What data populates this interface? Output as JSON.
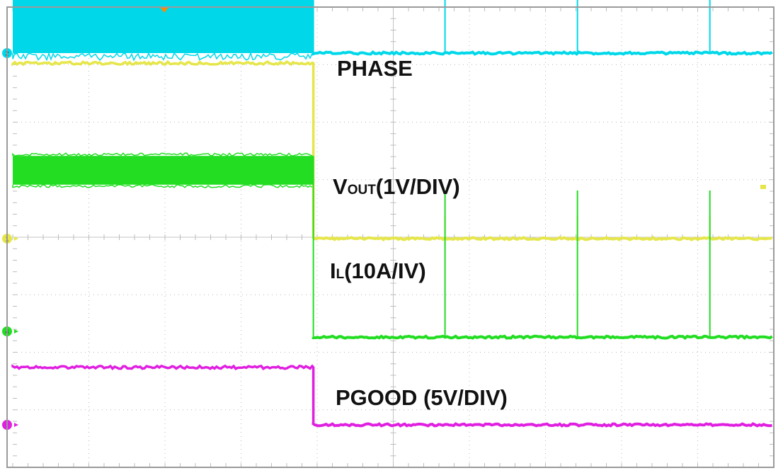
{
  "chart_data": {
    "type": "line",
    "title": "",
    "xlabel": "",
    "ylabel": "",
    "grid": true,
    "grid_divisions": {
      "x": 10,
      "y": 8
    },
    "x_range_div": [
      0,
      10
    ],
    "event_time_div": 3.95,
    "series": [
      {
        "name": "PHASE",
        "label_main": "PHASE",
        "label_sub": "",
        "label_suffix": "",
        "channel": "2",
        "color": "#00d8ea",
        "marker_level_div": 0.8,
        "before": {
          "type": "switching",
          "low_div": 0.8,
          "high_div": 2.25
        },
        "after_level_div": 0.8,
        "pulses": [
          {
            "t_div": 5.68,
            "peak_div": 2.25
          },
          {
            "t_div": 7.42,
            "peak_div": 2.25
          },
          {
            "t_div": 9.16,
            "peak_div": 2.25
          }
        ]
      },
      {
        "name": "VOUT(1V/DIV)",
        "label_main": "V",
        "label_sub": "OUT",
        "label_suffix": "(1V/DIV)",
        "channel": "1",
        "color": "#e6e64a",
        "marker_level_div": 0.0,
        "before": {
          "type": "level",
          "level_div": 3.05
        },
        "after_level_div": 0.0,
        "pulses": [
          {
            "t_div": 5.68,
            "peak_div": 0.4
          },
          {
            "t_div": 7.42,
            "peak_div": 0.4
          },
          {
            "t_div": 9.16,
            "peak_div": 0.4
          }
        ]
      },
      {
        "name": "IL(10A/IV)",
        "label_main": "I",
        "label_sub": "L",
        "label_suffix": "(10A/IV)",
        "channel": "4",
        "color": "#22dd22",
        "marker_level_div": 0.0,
        "before": {
          "type": "switching",
          "low_div": 2.55,
          "high_div": 3.05
        },
        "after_level_div": -0.1,
        "pulses": [
          {
            "t_div": 5.68,
            "peak_div": 2.45
          },
          {
            "t_div": 7.42,
            "peak_div": 2.45
          },
          {
            "t_div": 9.16,
            "peak_div": 2.45
          }
        ]
      },
      {
        "name": "PGOOD (5V/DIV)",
        "label_main": "PGOOD (5V/DIV)",
        "label_sub": "",
        "label_suffix": "",
        "channel": "",
        "color": "#e020e0",
        "marker_level_div": 0.0,
        "before": {
          "type": "level",
          "level_div": 1.0
        },
        "after_level_div": 0.0,
        "pulses": []
      }
    ]
  },
  "markers": {
    "trigger_color": "#ff8800",
    "channel_2_label": "2",
    "channel_1_label": "1",
    "channel_4_label": "4"
  }
}
